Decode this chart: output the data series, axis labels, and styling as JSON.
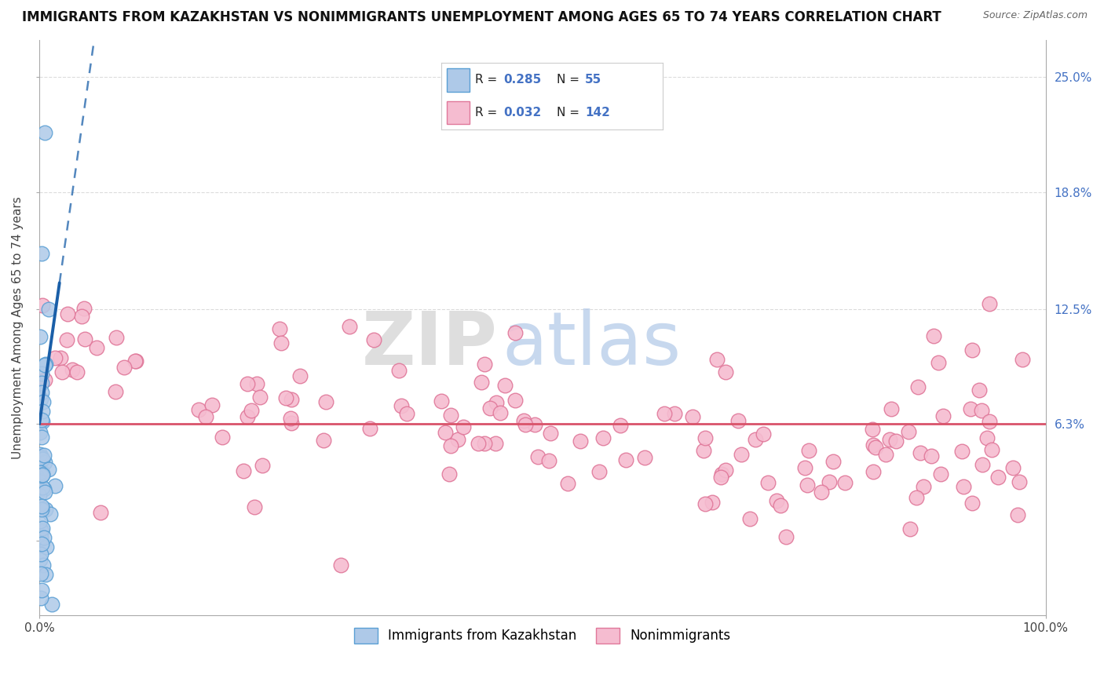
{
  "title": "IMMIGRANTS FROM KAZAKHSTAN VS NONIMMIGRANTS UNEMPLOYMENT AMONG AGES 65 TO 74 YEARS CORRELATION CHART",
  "source": "Source: ZipAtlas.com",
  "ylabel": "Unemployment Among Ages 65 to 74 years",
  "xlim": [
    0,
    100
  ],
  "ylim": [
    -4,
    27
  ],
  "ytick_vals": [
    0,
    6.3,
    12.5,
    18.8,
    25.0
  ],
  "ytick_labels": [
    "",
    "6.3%",
    "12.5%",
    "18.8%",
    "25.0%"
  ],
  "xtick_vals": [
    0,
    100
  ],
  "xtick_labels": [
    "0.0%",
    "100.0%"
  ],
  "blue_R": 0.285,
  "blue_N": 55,
  "pink_R": 0.032,
  "pink_N": 142,
  "blue_face": "#aec9e8",
  "blue_edge": "#5a9fd4",
  "pink_face": "#f5bcd0",
  "pink_edge": "#e0789a",
  "blue_line_color": "#1a5fa8",
  "pink_line_color": "#d9536a",
  "legend_label_blue": "Immigrants from Kazakhstan",
  "legend_label_pink": "Nonimmigrants",
  "background_color": "#ffffff",
  "grid_color": "#cccccc",
  "title_fontsize": 12,
  "axis_label_fontsize": 11,
  "tick_fontsize": 11,
  "legend_fontsize": 12,
  "right_tick_color": "#4472c4",
  "blue_trend_intercept": 6.3,
  "blue_trend_slope": 3.8,
  "pink_trend_intercept": 6.3,
  "pink_trend_slope": 0.0
}
